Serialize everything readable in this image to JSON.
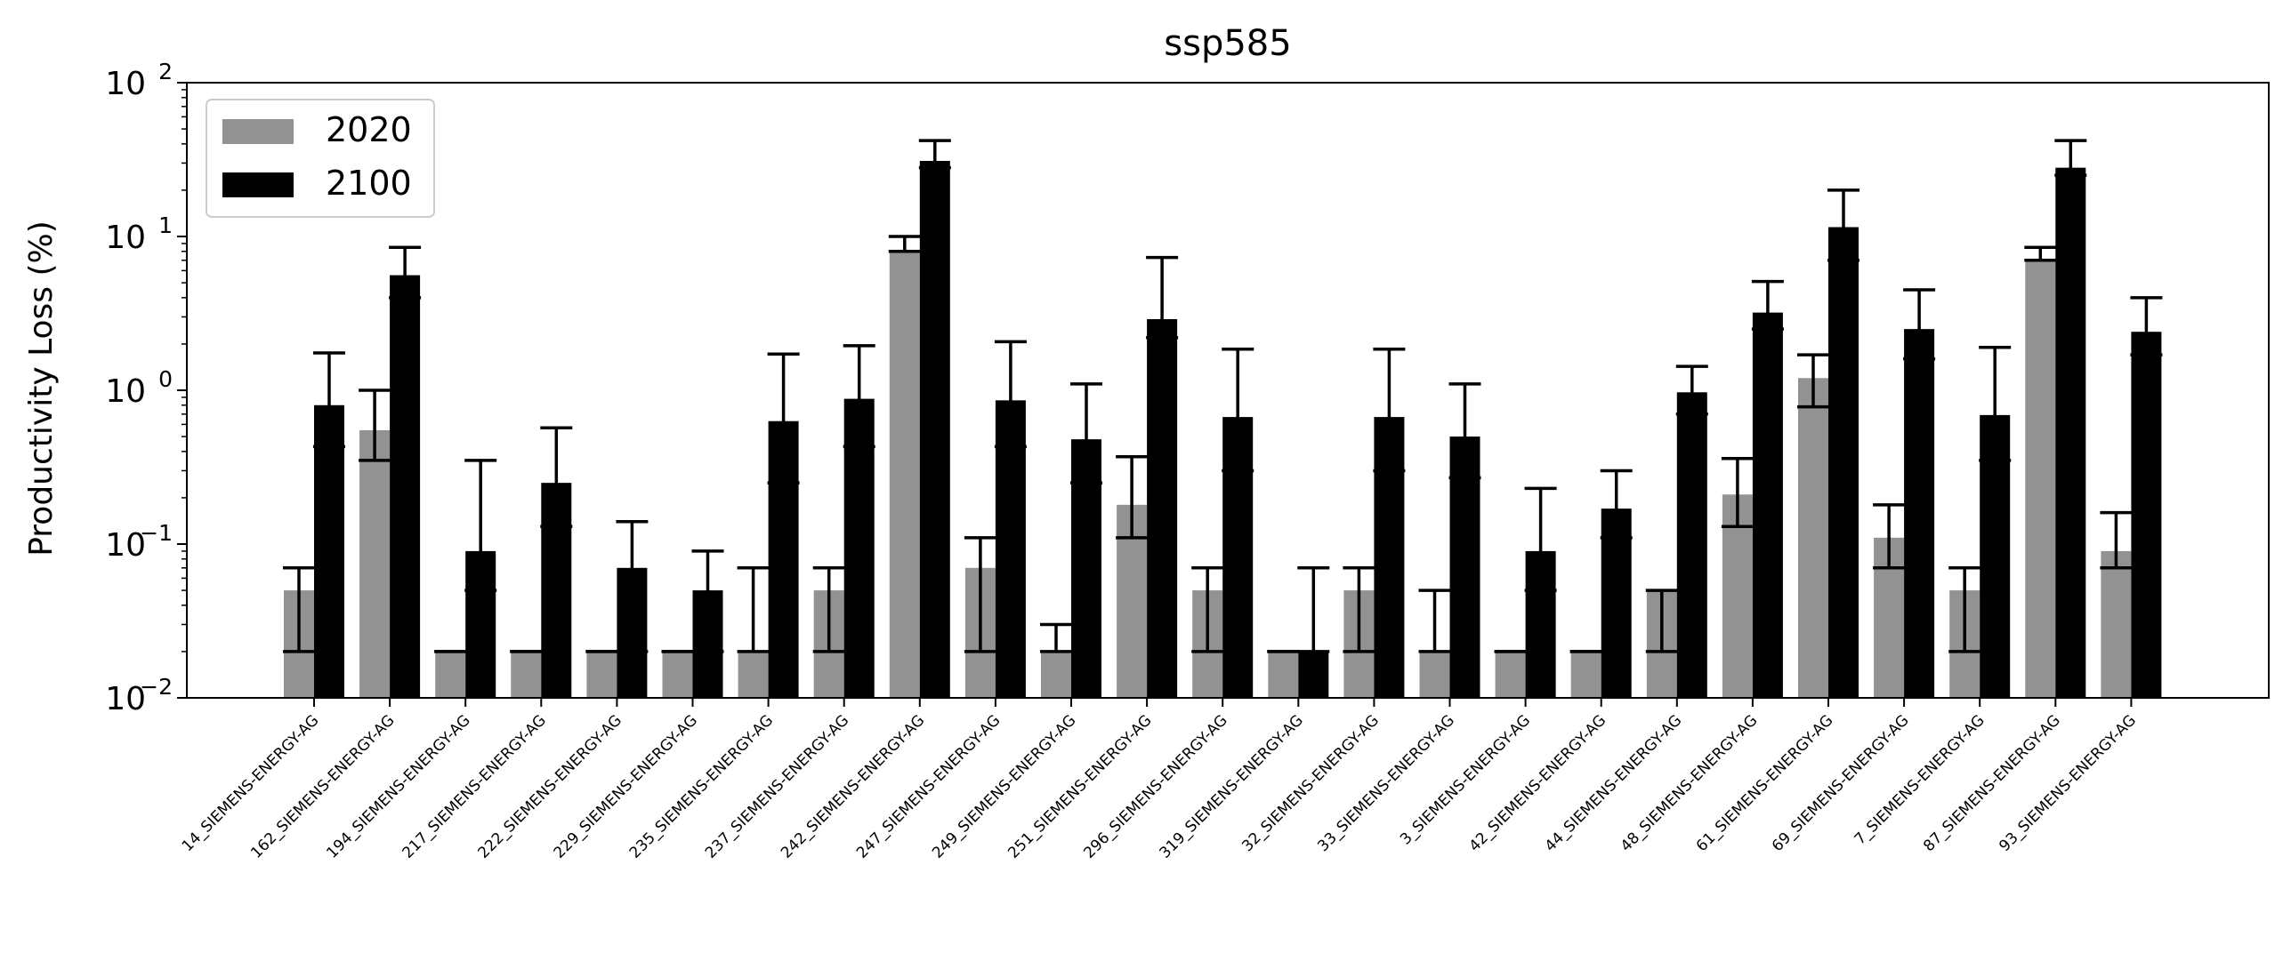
{
  "chart_data": {
    "type": "bar",
    "title": "ssp585",
    "xlabel": "",
    "ylabel": "Productivity Loss (%)",
    "yscale": "log",
    "ylim": [
      0.01,
      100
    ],
    "yticks": [
      {
        "base": "10",
        "exp": "−2"
      },
      {
        "base": "10",
        "exp": "−1"
      },
      {
        "base": "10",
        "exp": "0"
      },
      {
        "base": "10",
        "exp": "1"
      },
      {
        "base": "10",
        "exp": "2"
      }
    ],
    "legend": {
      "position": "top-left"
    },
    "categories": [
      "14_SIEMENS-ENERGY-AG",
      "162_SIEMENS-ENERGY-AG",
      "194_SIEMENS-ENERGY-AG",
      "217_SIEMENS-ENERGY-AG",
      "222_SIEMENS-ENERGY-AG",
      "229_SIEMENS-ENERGY-AG",
      "235_SIEMENS-ENERGY-AG",
      "237_SIEMENS-ENERGY-AG",
      "242_SIEMENS-ENERGY-AG",
      "247_SIEMENS-ENERGY-AG",
      "249_SIEMENS-ENERGY-AG",
      "251_SIEMENS-ENERGY-AG",
      "296_SIEMENS-ENERGY-AG",
      "319_SIEMENS-ENERGY-AG",
      "32_SIEMENS-ENERGY-AG",
      "33_SIEMENS-ENERGY-AG",
      "3_SIEMENS-ENERGY-AG",
      "42_SIEMENS-ENERGY-AG",
      "44_SIEMENS-ENERGY-AG",
      "48_SIEMENS-ENERGY-AG",
      "61_SIEMENS-ENERGY-AG",
      "69_SIEMENS-ENERGY-AG",
      "7_SIEMENS-ENERGY-AG",
      "87_SIEMENS-ENERGY-AG",
      "93_SIEMENS-ENERGY-AG"
    ],
    "series": [
      {
        "name": "2020",
        "color": "#929292",
        "values": [
          0.05,
          0.55,
          0.02,
          0.02,
          0.02,
          0.02,
          0.02,
          0.05,
          8.0,
          0.07,
          0.02,
          0.18,
          0.05,
          0.02,
          0.05,
          0.02,
          0.02,
          0.02,
          0.05,
          0.21,
          1.2,
          0.11,
          0.05,
          7.0,
          0.09
        ],
        "err_low": [
          0.02,
          0.35,
          0.02,
          0.02,
          0.02,
          0.02,
          0.02,
          0.02,
          8.0,
          0.02,
          0.02,
          0.11,
          0.02,
          0.02,
          0.02,
          0.02,
          0.02,
          0.02,
          0.02,
          0.13,
          0.78,
          0.07,
          0.02,
          7.0,
          0.07
        ],
        "err_high": [
          0.07,
          1.0,
          0.02,
          0.02,
          0.02,
          0.02,
          0.07,
          0.07,
          10.0,
          0.11,
          0.03,
          0.37,
          0.07,
          0.02,
          0.07,
          0.05,
          0.02,
          0.02,
          0.05,
          0.36,
          1.7,
          0.18,
          0.07,
          8.5,
          0.16
        ]
      },
      {
        "name": "2100",
        "color": "#000000",
        "values": [
          0.8,
          5.6,
          0.09,
          0.25,
          0.07,
          0.05,
          0.63,
          0.88,
          31.0,
          0.86,
          0.48,
          2.9,
          0.67,
          0.02,
          0.67,
          0.5,
          0.09,
          0.17,
          0.97,
          3.2,
          11.5,
          2.5,
          0.69,
          28.0,
          2.4
        ],
        "err_low": [
          0.43,
          4.0,
          0.05,
          0.13,
          0.02,
          0.02,
          0.25,
          0.43,
          28.0,
          0.43,
          0.25,
          2.2,
          0.3,
          0.02,
          0.3,
          0.27,
          0.05,
          0.11,
          0.7,
          2.5,
          7.0,
          1.6,
          0.35,
          25.0,
          1.7
        ],
        "err_high": [
          1.75,
          8.5,
          0.35,
          0.57,
          0.14,
          0.09,
          1.72,
          1.95,
          42.0,
          2.07,
          1.1,
          7.3,
          1.85,
          0.07,
          1.85,
          1.1,
          0.23,
          0.3,
          1.43,
          5.1,
          20.0,
          4.5,
          1.9,
          42.0,
          4.0
        ]
      }
    ]
  }
}
